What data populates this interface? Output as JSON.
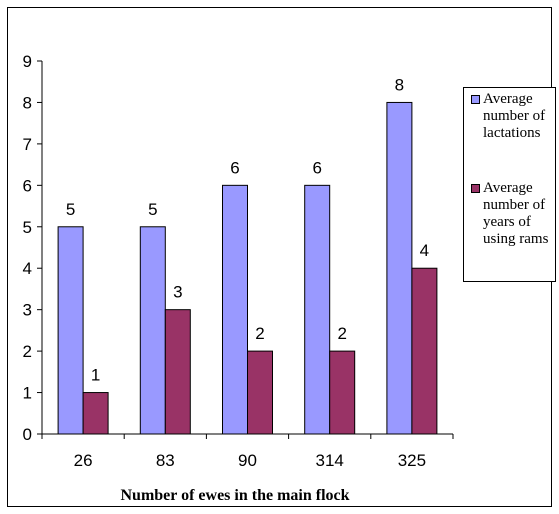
{
  "chart_data": {
    "type": "bar",
    "categories": [
      "26",
      "83",
      "90",
      "314",
      "325"
    ],
    "series": [
      {
        "name": "Average number of lactations",
        "values": [
          5,
          5,
          6,
          6,
          8
        ],
        "color": "#9999ff"
      },
      {
        "name": "Average number of years of using rams",
        "values": [
          1,
          3,
          2,
          2,
          4
        ],
        "color": "#993366"
      }
    ],
    "title": "",
    "xlabel": "Number of ewes in the main flock",
    "ylabel": "",
    "ylim": [
      0,
      9
    ],
    "yticks": [
      0,
      1,
      2,
      3,
      4,
      5,
      6,
      7,
      8,
      9
    ],
    "data_labels": true,
    "grid": false,
    "legend_position": "right"
  },
  "legend": {
    "items": [
      {
        "label": "Average number of lactations"
      },
      {
        "label": "Average number of years of using rams"
      }
    ]
  }
}
